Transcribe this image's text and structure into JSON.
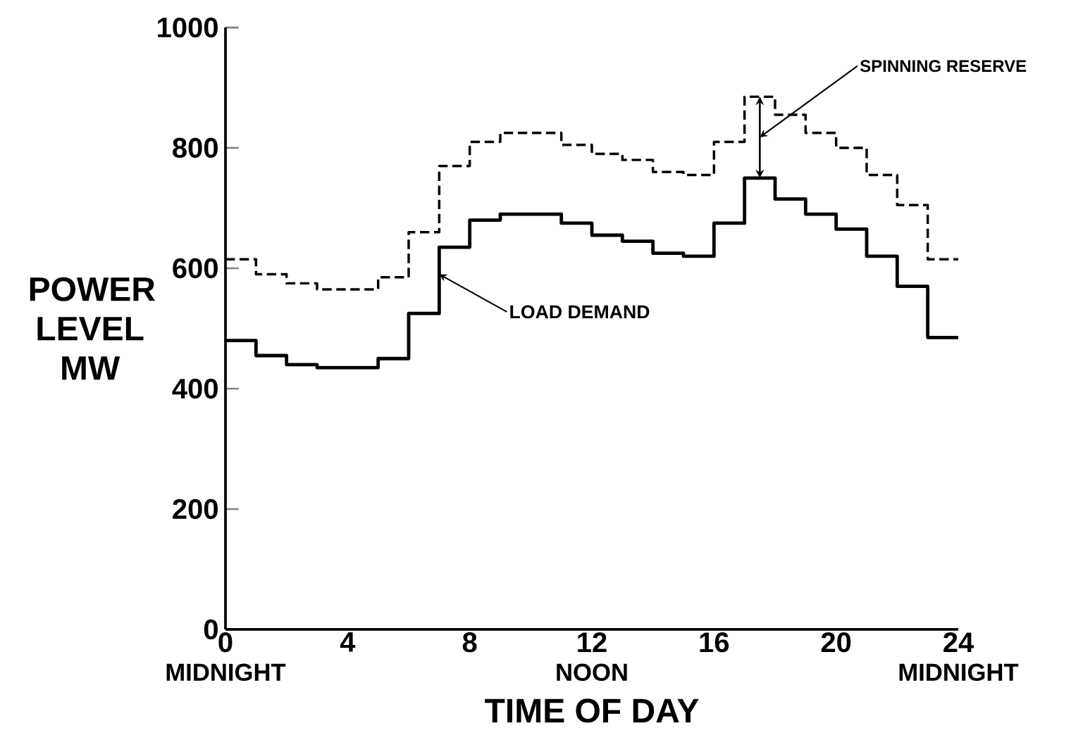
{
  "chart_data": {
    "type": "step",
    "xlabel": "TIME OF DAY",
    "ylabel": "POWER LEVEL MW",
    "x": [
      0,
      1,
      2,
      3,
      4,
      5,
      6,
      7,
      8,
      9,
      10,
      11,
      12,
      13,
      14,
      15,
      16,
      17,
      18,
      19,
      20,
      21,
      22,
      23,
      24
    ],
    "series": [
      {
        "color": "#000000",
        "line_style": "solid",
        "values": [
          480,
          455,
          440,
          435,
          435,
          450,
          525,
          635,
          680,
          690,
          690,
          675,
          655,
          645,
          625,
          620,
          675,
          750,
          715,
          690,
          665,
          620,
          570,
          485,
          485
        ]
      },
      {
        "color": "#000000",
        "line_style": "dashed",
        "values": [
          615,
          590,
          575,
          565,
          565,
          585,
          660,
          770,
          810,
          825,
          825,
          805,
          790,
          780,
          760,
          755,
          810,
          885,
          855,
          825,
          800,
          755,
          705,
          615,
          615
        ]
      }
    ],
    "xlim": [
      0,
      24
    ],
    "xticks": [
      0,
      4,
      8,
      12,
      16,
      20,
      24
    ],
    "ylim": [
      0,
      1000
    ],
    "yticks": [
      0,
      200,
      400,
      600,
      800,
      1000
    ],
    "annotations": [
      {
        "text": "LOAD DEMAND",
        "x": 7,
        "y": 590
      },
      "SPINNING RESERVE",
      "MIDNIGHT",
      "NOON",
      "MIDNIGHT"
    ]
  }
}
